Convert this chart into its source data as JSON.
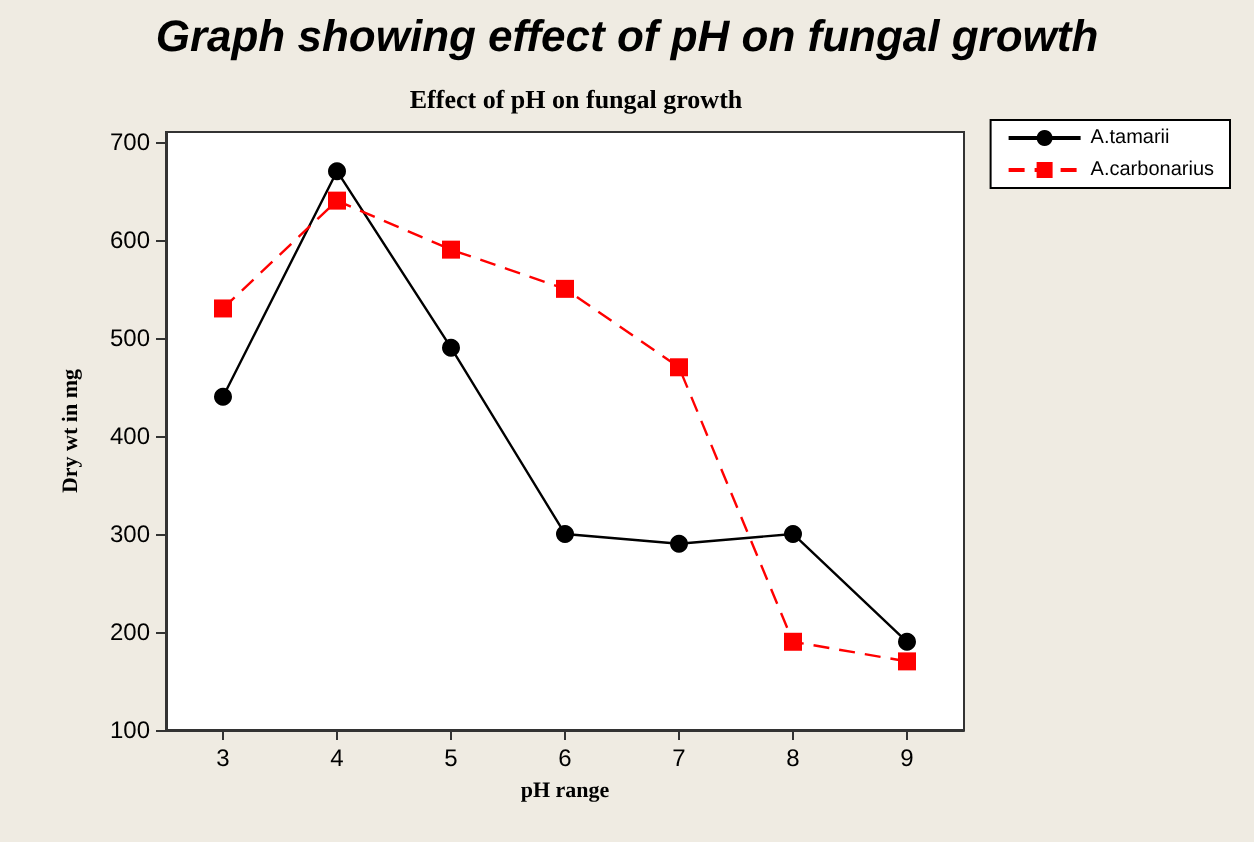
{
  "chart_data": {
    "type": "line",
    "title": "Graph showing effect of pH on fungal growth",
    "subtitle": "Effect of pH on fungal growth",
    "xlabel": "pH range",
    "ylabel": "Dry wt in mg",
    "x": [
      3,
      4,
      5,
      6,
      7,
      8,
      9
    ],
    "series": [
      {
        "name": "A.tamarii",
        "color": "#000000",
        "marker": "circle",
        "line_style": "solid",
        "values": [
          440,
          670,
          490,
          300,
          290,
          300,
          190
        ]
      },
      {
        "name": "A.carbonarius",
        "color": "#ff0000",
        "marker": "square",
        "line_style": "dashed",
        "values": [
          530,
          640,
          590,
          550,
          470,
          190,
          170
        ]
      }
    ],
    "xlim": [
      2.5,
      9.5
    ],
    "xticks": [
      3,
      4,
      5,
      6,
      7,
      8,
      9
    ],
    "ylim": [
      100,
      710
    ],
    "yticks": [
      100,
      200,
      300,
      400,
      500,
      600,
      700
    ],
    "grid": false,
    "legend": "top right"
  }
}
